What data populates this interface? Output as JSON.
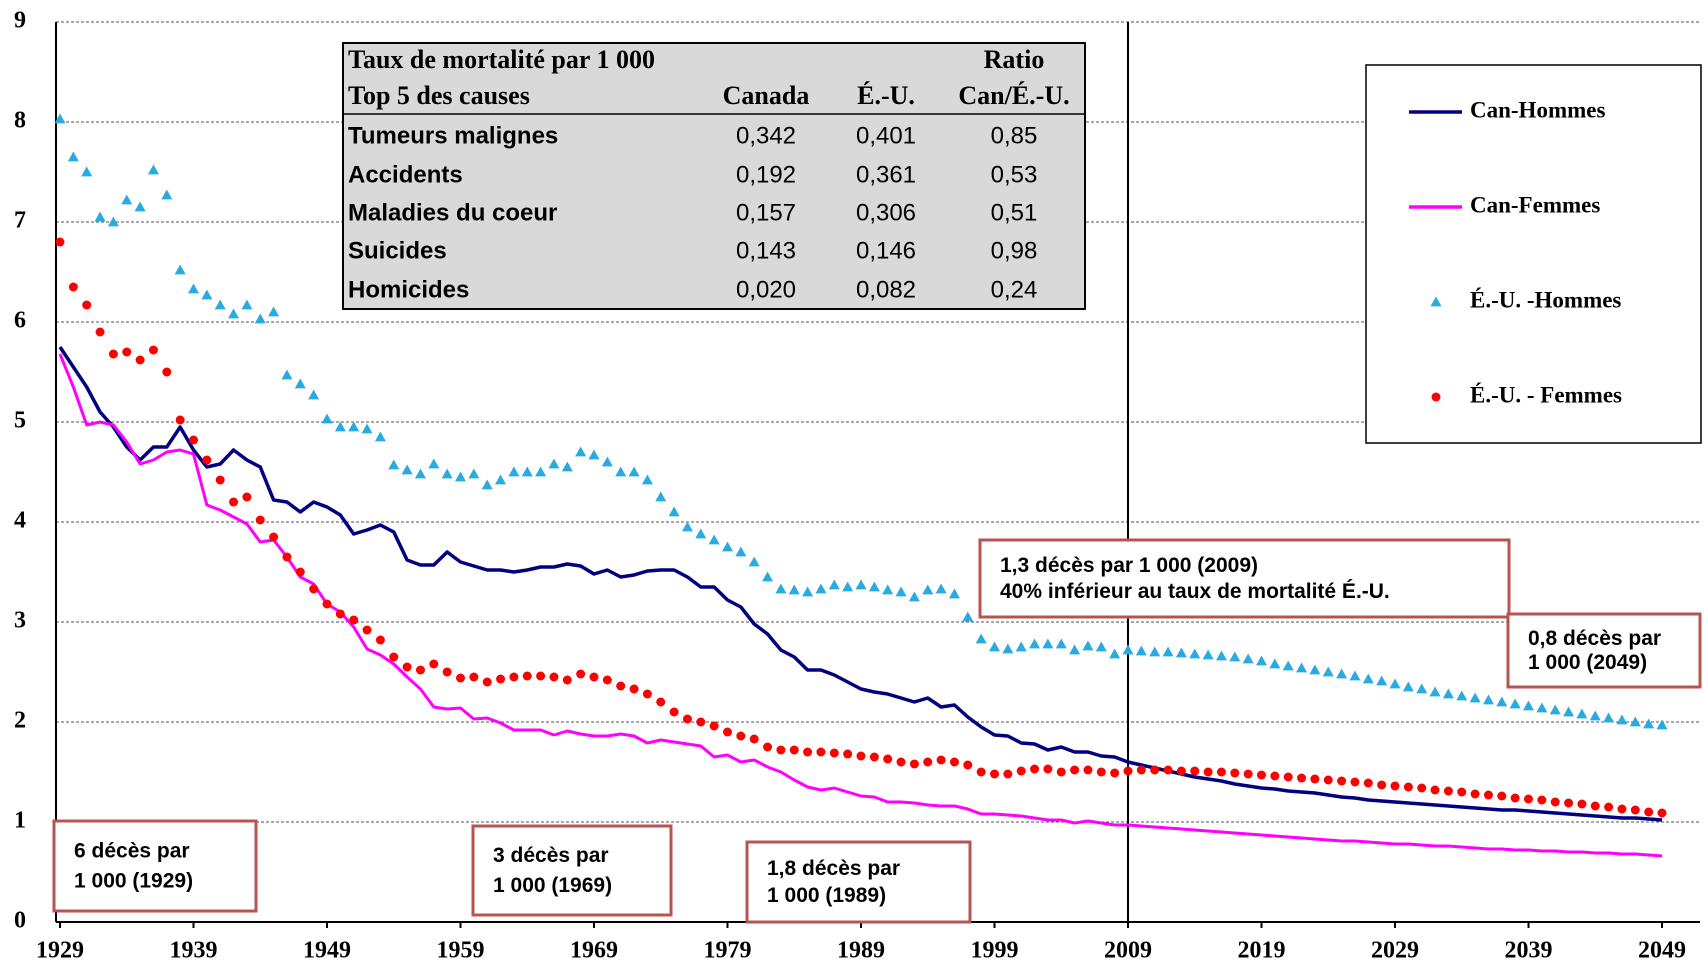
{
  "chart_data": {
    "type": "line",
    "x": [
      1929,
      1930,
      1931,
      1932,
      1933,
      1934,
      1935,
      1936,
      1937,
      1938,
      1939,
      1940,
      1941,
      1942,
      1943,
      1944,
      1945,
      1946,
      1947,
      1948,
      1949,
      1950,
      1951,
      1952,
      1953,
      1954,
      1955,
      1956,
      1957,
      1958,
      1959,
      1960,
      1961,
      1962,
      1963,
      1964,
      1965,
      1966,
      1967,
      1968,
      1969,
      1970,
      1971,
      1972,
      1973,
      1974,
      1975,
      1976,
      1977,
      1978,
      1979,
      1980,
      1981,
      1982,
      1983,
      1984,
      1985,
      1986,
      1987,
      1988,
      1989,
      1990,
      1991,
      1992,
      1993,
      1994,
      1995,
      1996,
      1997,
      1998,
      1999,
      2000,
      2001,
      2002,
      2003,
      2004,
      2005,
      2006,
      2007,
      2008,
      2009,
      2010,
      2011,
      2012,
      2013,
      2014,
      2015,
      2016,
      2017,
      2018,
      2019,
      2020,
      2021,
      2022,
      2023,
      2024,
      2025,
      2026,
      2027,
      2028,
      2029,
      2030,
      2031,
      2032,
      2033,
      2034,
      2035,
      2036,
      2037,
      2038,
      2039,
      2040,
      2041,
      2042,
      2043,
      2044,
      2045,
      2046,
      2047,
      2048,
      2049
    ],
    "series": [
      {
        "name": "Can-Hommes",
        "color": "#000080",
        "style": "line",
        "values": [
          5.75,
          5.55,
          5.35,
          5.1,
          4.95,
          4.75,
          4.62,
          4.75,
          4.75,
          4.95,
          4.72,
          4.55,
          4.58,
          4.72,
          4.62,
          4.55,
          4.22,
          4.2,
          4.1,
          4.2,
          4.15,
          4.07,
          3.88,
          3.92,
          3.97,
          3.9,
          3.62,
          3.57,
          3.57,
          3.7,
          3.6,
          3.56,
          3.52,
          3.52,
          3.5,
          3.52,
          3.55,
          3.55,
          3.58,
          3.56,
          3.48,
          3.52,
          3.45,
          3.47,
          3.51,
          3.52,
          3.52,
          3.45,
          3.35,
          3.35,
          3.22,
          3.15,
          2.98,
          2.88,
          2.72,
          2.65,
          2.52,
          2.52,
          2.47,
          2.4,
          2.33,
          2.3,
          2.28,
          2.24,
          2.2,
          2.24,
          2.15,
          2.17,
          2.05,
          1.95,
          1.87,
          1.86,
          1.79,
          1.78,
          1.72,
          1.75,
          1.7,
          1.7,
          1.66,
          1.65,
          1.6,
          1.57,
          1.54,
          1.51,
          1.48,
          1.45,
          1.43,
          1.41,
          1.38,
          1.36,
          1.34,
          1.33,
          1.31,
          1.3,
          1.29,
          1.27,
          1.25,
          1.24,
          1.22,
          1.21,
          1.2,
          1.19,
          1.18,
          1.17,
          1.16,
          1.15,
          1.14,
          1.13,
          1.12,
          1.12,
          1.11,
          1.1,
          1.09,
          1.08,
          1.07,
          1.06,
          1.05,
          1.04,
          1.04,
          1.03,
          1.02
        ]
      },
      {
        "name": "Can-Femmes",
        "color": "#ff00ff",
        "style": "line",
        "values": [
          5.68,
          5.35,
          4.97,
          5.0,
          4.97,
          4.8,
          4.58,
          4.62,
          4.7,
          4.72,
          4.68,
          4.17,
          4.12,
          4.05,
          3.98,
          3.8,
          3.82,
          3.65,
          3.45,
          3.38,
          3.18,
          3.1,
          2.95,
          2.73,
          2.67,
          2.58,
          2.45,
          2.33,
          2.15,
          2.13,
          2.14,
          2.03,
          2.04,
          1.99,
          1.92,
          1.92,
          1.92,
          1.87,
          1.91,
          1.88,
          1.86,
          1.86,
          1.88,
          1.86,
          1.79,
          1.82,
          1.8,
          1.78,
          1.76,
          1.65,
          1.67,
          1.6,
          1.62,
          1.55,
          1.5,
          1.42,
          1.35,
          1.32,
          1.34,
          1.3,
          1.26,
          1.25,
          1.2,
          1.2,
          1.19,
          1.17,
          1.16,
          1.16,
          1.13,
          1.08,
          1.08,
          1.07,
          1.06,
          1.04,
          1.02,
          1.02,
          0.99,
          1.01,
          0.99,
          0.97,
          0.97,
          0.96,
          0.95,
          0.94,
          0.93,
          0.92,
          0.91,
          0.9,
          0.89,
          0.88,
          0.87,
          0.86,
          0.85,
          0.84,
          0.83,
          0.82,
          0.81,
          0.81,
          0.8,
          0.79,
          0.78,
          0.78,
          0.77,
          0.76,
          0.76,
          0.75,
          0.74,
          0.73,
          0.73,
          0.72,
          0.72,
          0.71,
          0.71,
          0.7,
          0.7,
          0.69,
          0.69,
          0.68,
          0.68,
          0.67,
          0.66
        ]
      },
      {
        "name": "É.-U. -Hommes",
        "color": "#29abe2",
        "style": "triangle",
        "values": [
          8.03,
          7.65,
          7.5,
          7.05,
          7.0,
          7.22,
          7.15,
          7.52,
          7.27,
          6.52,
          6.33,
          6.27,
          6.17,
          6.08,
          6.17,
          6.03,
          6.1,
          5.47,
          5.38,
          5.27,
          5.03,
          4.95,
          4.95,
          4.93,
          4.85,
          4.57,
          4.52,
          4.48,
          4.58,
          4.48,
          4.45,
          4.48,
          4.37,
          4.42,
          4.5,
          4.5,
          4.5,
          4.58,
          4.55,
          4.7,
          4.67,
          4.6,
          4.5,
          4.5,
          4.42,
          4.25,
          4.1,
          3.95,
          3.88,
          3.82,
          3.75,
          3.7,
          3.6,
          3.45,
          3.33,
          3.32,
          3.3,
          3.33,
          3.37,
          3.35,
          3.37,
          3.35,
          3.32,
          3.3,
          3.25,
          3.32,
          3.33,
          3.28,
          3.05,
          2.83,
          2.75,
          2.73,
          2.75,
          2.78,
          2.78,
          2.78,
          2.72,
          2.76,
          2.75,
          2.68,
          2.72,
          2.71,
          2.7,
          2.7,
          2.69,
          2.68,
          2.67,
          2.66,
          2.65,
          2.63,
          2.61,
          2.58,
          2.56,
          2.54,
          2.52,
          2.5,
          2.48,
          2.46,
          2.43,
          2.41,
          2.38,
          2.35,
          2.33,
          2.3,
          2.28,
          2.26,
          2.24,
          2.22,
          2.2,
          2.18,
          2.16,
          2.14,
          2.12,
          2.1,
          2.08,
          2.06,
          2.04,
          2.02,
          2.0,
          1.98,
          1.97
        ]
      },
      {
        "name": "É.-U. - Femmes",
        "color": "#ff0000",
        "style": "circle",
        "values": [
          6.8,
          6.35,
          6.17,
          5.9,
          5.68,
          5.7,
          5.62,
          5.72,
          5.5,
          5.02,
          4.82,
          4.62,
          4.42,
          4.2,
          4.25,
          4.02,
          3.85,
          3.65,
          3.5,
          3.33,
          3.18,
          3.08,
          3.02,
          2.92,
          2.82,
          2.65,
          2.55,
          2.52,
          2.58,
          2.5,
          2.44,
          2.45,
          2.4,
          2.43,
          2.45,
          2.46,
          2.46,
          2.45,
          2.42,
          2.48,
          2.45,
          2.42,
          2.36,
          2.33,
          2.28,
          2.2,
          2.1,
          2.03,
          2.0,
          1.96,
          1.9,
          1.86,
          1.83,
          1.75,
          1.72,
          1.72,
          1.7,
          1.7,
          1.69,
          1.68,
          1.66,
          1.65,
          1.63,
          1.6,
          1.58,
          1.6,
          1.62,
          1.6,
          1.57,
          1.5,
          1.48,
          1.48,
          1.51,
          1.53,
          1.53,
          1.5,
          1.52,
          1.52,
          1.5,
          1.49,
          1.51,
          1.52,
          1.52,
          1.52,
          1.51,
          1.51,
          1.5,
          1.5,
          1.49,
          1.48,
          1.47,
          1.46,
          1.45,
          1.44,
          1.43,
          1.42,
          1.41,
          1.4,
          1.39,
          1.37,
          1.36,
          1.35,
          1.34,
          1.32,
          1.31,
          1.3,
          1.28,
          1.27,
          1.26,
          1.24,
          1.23,
          1.22,
          1.2,
          1.19,
          1.18,
          1.16,
          1.15,
          1.13,
          1.12,
          1.1,
          1.09
        ]
      }
    ],
    "xlim": [
      1929,
      2049
    ],
    "xticks": [
      1929,
      1939,
      1949,
      1959,
      1969,
      1979,
      1989,
      1999,
      2009,
      2019,
      2029,
      2039,
      2049
    ],
    "ylim": [
      0,
      9
    ],
    "yticks": [
      0,
      1,
      2,
      3,
      4,
      5,
      6,
      7,
      8,
      9
    ],
    "grid": true,
    "legend": "upper right",
    "reference_line_x": 2009,
    "table": {
      "header": [
        [
          "Taux de mortalité par 1 000",
          "",
          "",
          "Ratio"
        ],
        [
          "Top 5 des causes",
          "Canada",
          "É.-U.",
          "Can/É.-U."
        ]
      ],
      "rows": [
        [
          "Tumeurs malignes",
          "0,342",
          "0,401",
          "0,85"
        ],
        [
          "Accidents",
          "0,192",
          "0,361",
          "0,53"
        ],
        [
          "Maladies du coeur",
          "0,157",
          "0,306",
          "0,51"
        ],
        [
          "Suicides",
          "0,143",
          "0,146",
          "0,98"
        ],
        [
          "Homicides",
          "0,020",
          "0,082",
          "0,24"
        ]
      ]
    },
    "annotations": [
      {
        "lines": [
          "6 décès par",
          "1 000 (1929)"
        ]
      },
      {
        "lines": [
          "3 décès par",
          "1 000 (1969)"
        ]
      },
      {
        "lines": [
          "1,8 décès par",
          "1 000 (1989)"
        ]
      },
      {
        "lines": [
          "1,3 décès par 1 000 (2009)",
          "40% inférieur au taux de mortalité É.-U."
        ]
      },
      {
        "lines": [
          "0,8 décès par",
          "1 000 (2049)"
        ]
      }
    ]
  }
}
